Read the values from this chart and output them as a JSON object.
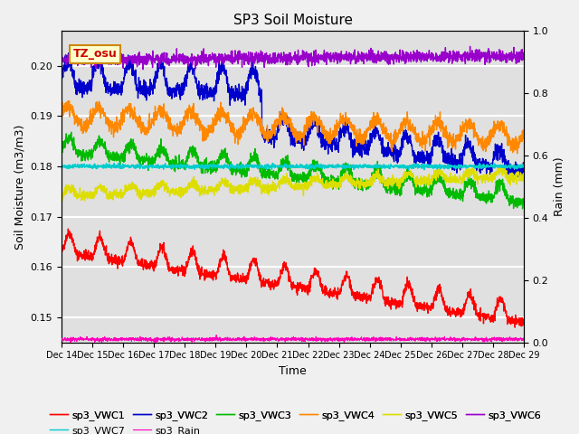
{
  "title": "SP3 Soil Moisture",
  "xlabel": "Time",
  "ylabel_left": "Soil Moisture (m3/m3)",
  "ylabel_right": "Rain (mm)",
  "annotation": "TZ_osu",
  "ylim_left": [
    0.145,
    0.207
  ],
  "ylim_right": [
    0.0,
    1.0
  ],
  "x_tick_labels": [
    "Dec 14",
    "Dec 15",
    "Dec 16",
    "Dec 17",
    "Dec 18",
    "Dec 19",
    "Dec 20",
    "Dec 21",
    "Dec 22",
    "Dec 23",
    "Dec 24",
    "Dec 25",
    "Dec 26",
    "Dec 27",
    "Dec 28",
    "Dec 29"
  ],
  "series_colors": {
    "sp3_VWC1": "#ff0000",
    "sp3_VWC2": "#0000cc",
    "sp3_VWC3": "#00bb00",
    "sp3_VWC4": "#ff8800",
    "sp3_VWC5": "#dddd00",
    "sp3_VWC6": "#9900cc",
    "sp3_VWC7": "#00cccc",
    "sp3_Rain": "#ff00bb"
  },
  "background_color": "#f0f0f0",
  "axes_bg_color": "#e0e0e0",
  "grid_color": "#ffffff",
  "annotation_bg": "#ffffcc",
  "annotation_border": "#cc8800",
  "title_fontsize": 11,
  "tick_fontsize": 8,
  "label_fontsize": 9,
  "legend_fontsize": 8
}
